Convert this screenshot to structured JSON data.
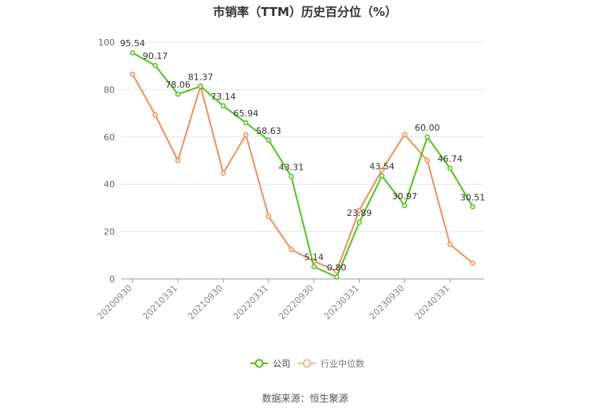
{
  "chart_data": {
    "type": "line",
    "title": "市销率（TTM）历史百分位（%）",
    "xlabel": "",
    "ylabel": "",
    "ylim": [
      0,
      100
    ],
    "y_ticks": [
      "0",
      "20",
      "40",
      "60",
      "80",
      "100"
    ],
    "x_ticks": [
      "20200930",
      "20210331",
      "20210930",
      "20220331",
      "20220930",
      "20230331",
      "20230930",
      "20240331"
    ],
    "grid": true,
    "legend_position": "bottom-center",
    "x": [
      "20200930",
      "20201231",
      "20210331",
      "20210630",
      "20210930",
      "20211231",
      "20220331",
      "20220630",
      "20220930",
      "20221231",
      "20230331",
      "20230630",
      "20230930",
      "20231231",
      "20240331",
      "20240630"
    ],
    "series": [
      {
        "name": "公司",
        "color": "#52c41a",
        "values": [
          95.54,
          90.17,
          78.06,
          81.37,
          73.14,
          65.94,
          58.63,
          43.31,
          5.14,
          0.8,
          23.89,
          43.54,
          30.97,
          60.0,
          46.74,
          30.51
        ],
        "labels": [
          "95.54",
          "90.17",
          "78.06",
          "81.37",
          "73.14",
          "65.94",
          "58.63",
          "43.31",
          "5.14",
          "0.80",
          "23.89",
          "43.54",
          "30.97",
          "60.00",
          "46.74",
          "30.51"
        ]
      },
      {
        "name": "行业中位数",
        "color": "#f28e5e",
        "values": [
          86.5,
          69.3,
          50.0,
          81.5,
          44.7,
          60.9,
          26.4,
          12.4,
          7.5,
          3.3,
          29.0,
          46.0,
          61.0,
          50.0,
          14.6,
          6.7
        ]
      }
    ]
  },
  "source_note": "数据来源：恒生聚源"
}
